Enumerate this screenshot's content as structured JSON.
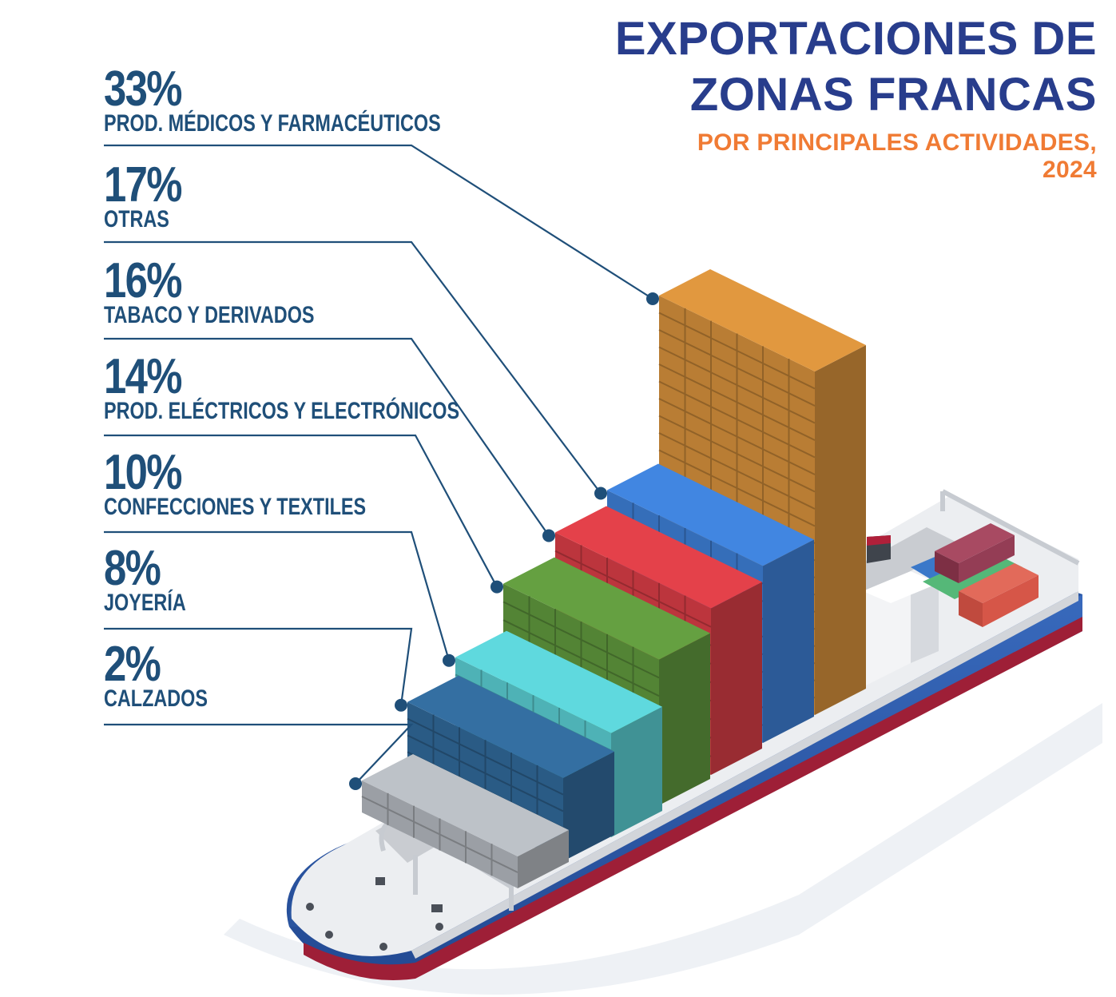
{
  "title": {
    "line1": "EXPORTACIONES DE",
    "line2": "ZONAS FRANCAS",
    "subtitle1": "POR PRINCIPALES ACTIVIDADES,",
    "subtitle2": "2024"
  },
  "colors": {
    "title": "#283d8c",
    "subtitle": "#f07b34",
    "label": "#1f4f79",
    "hull": "#2f5cab",
    "hull_bottom": "#b0203a",
    "deck": "#e9ebee"
  },
  "chart_data": {
    "type": "bar",
    "title": "EXPORTACIONES DE ZONAS FRANCAS POR PRINCIPALES ACTIVIDADES, 2024",
    "categories": [
      "PROD. MÉDICOS Y FARMACÉUTICOS",
      "OTRAS",
      "TABACO Y DERIVADOS",
      "PROD. ELÉCTRICOS Y ELECTRÓNICOS",
      "CONFECCIONES Y TEXTILES",
      "JOYERÍA",
      "CALZADOS"
    ],
    "values": [
      33,
      17,
      16,
      14,
      10,
      8,
      2
    ],
    "labels": [
      "33%",
      "17%",
      "16%",
      "14%",
      "10%",
      "8%",
      "2%"
    ],
    "colors": [
      "#c98838",
      "#3a78c9",
      "#cc3a42",
      "#5a8f3a",
      "#55c2c6",
      "#2e6391",
      "#a9adb3"
    ],
    "unit": "%"
  }
}
